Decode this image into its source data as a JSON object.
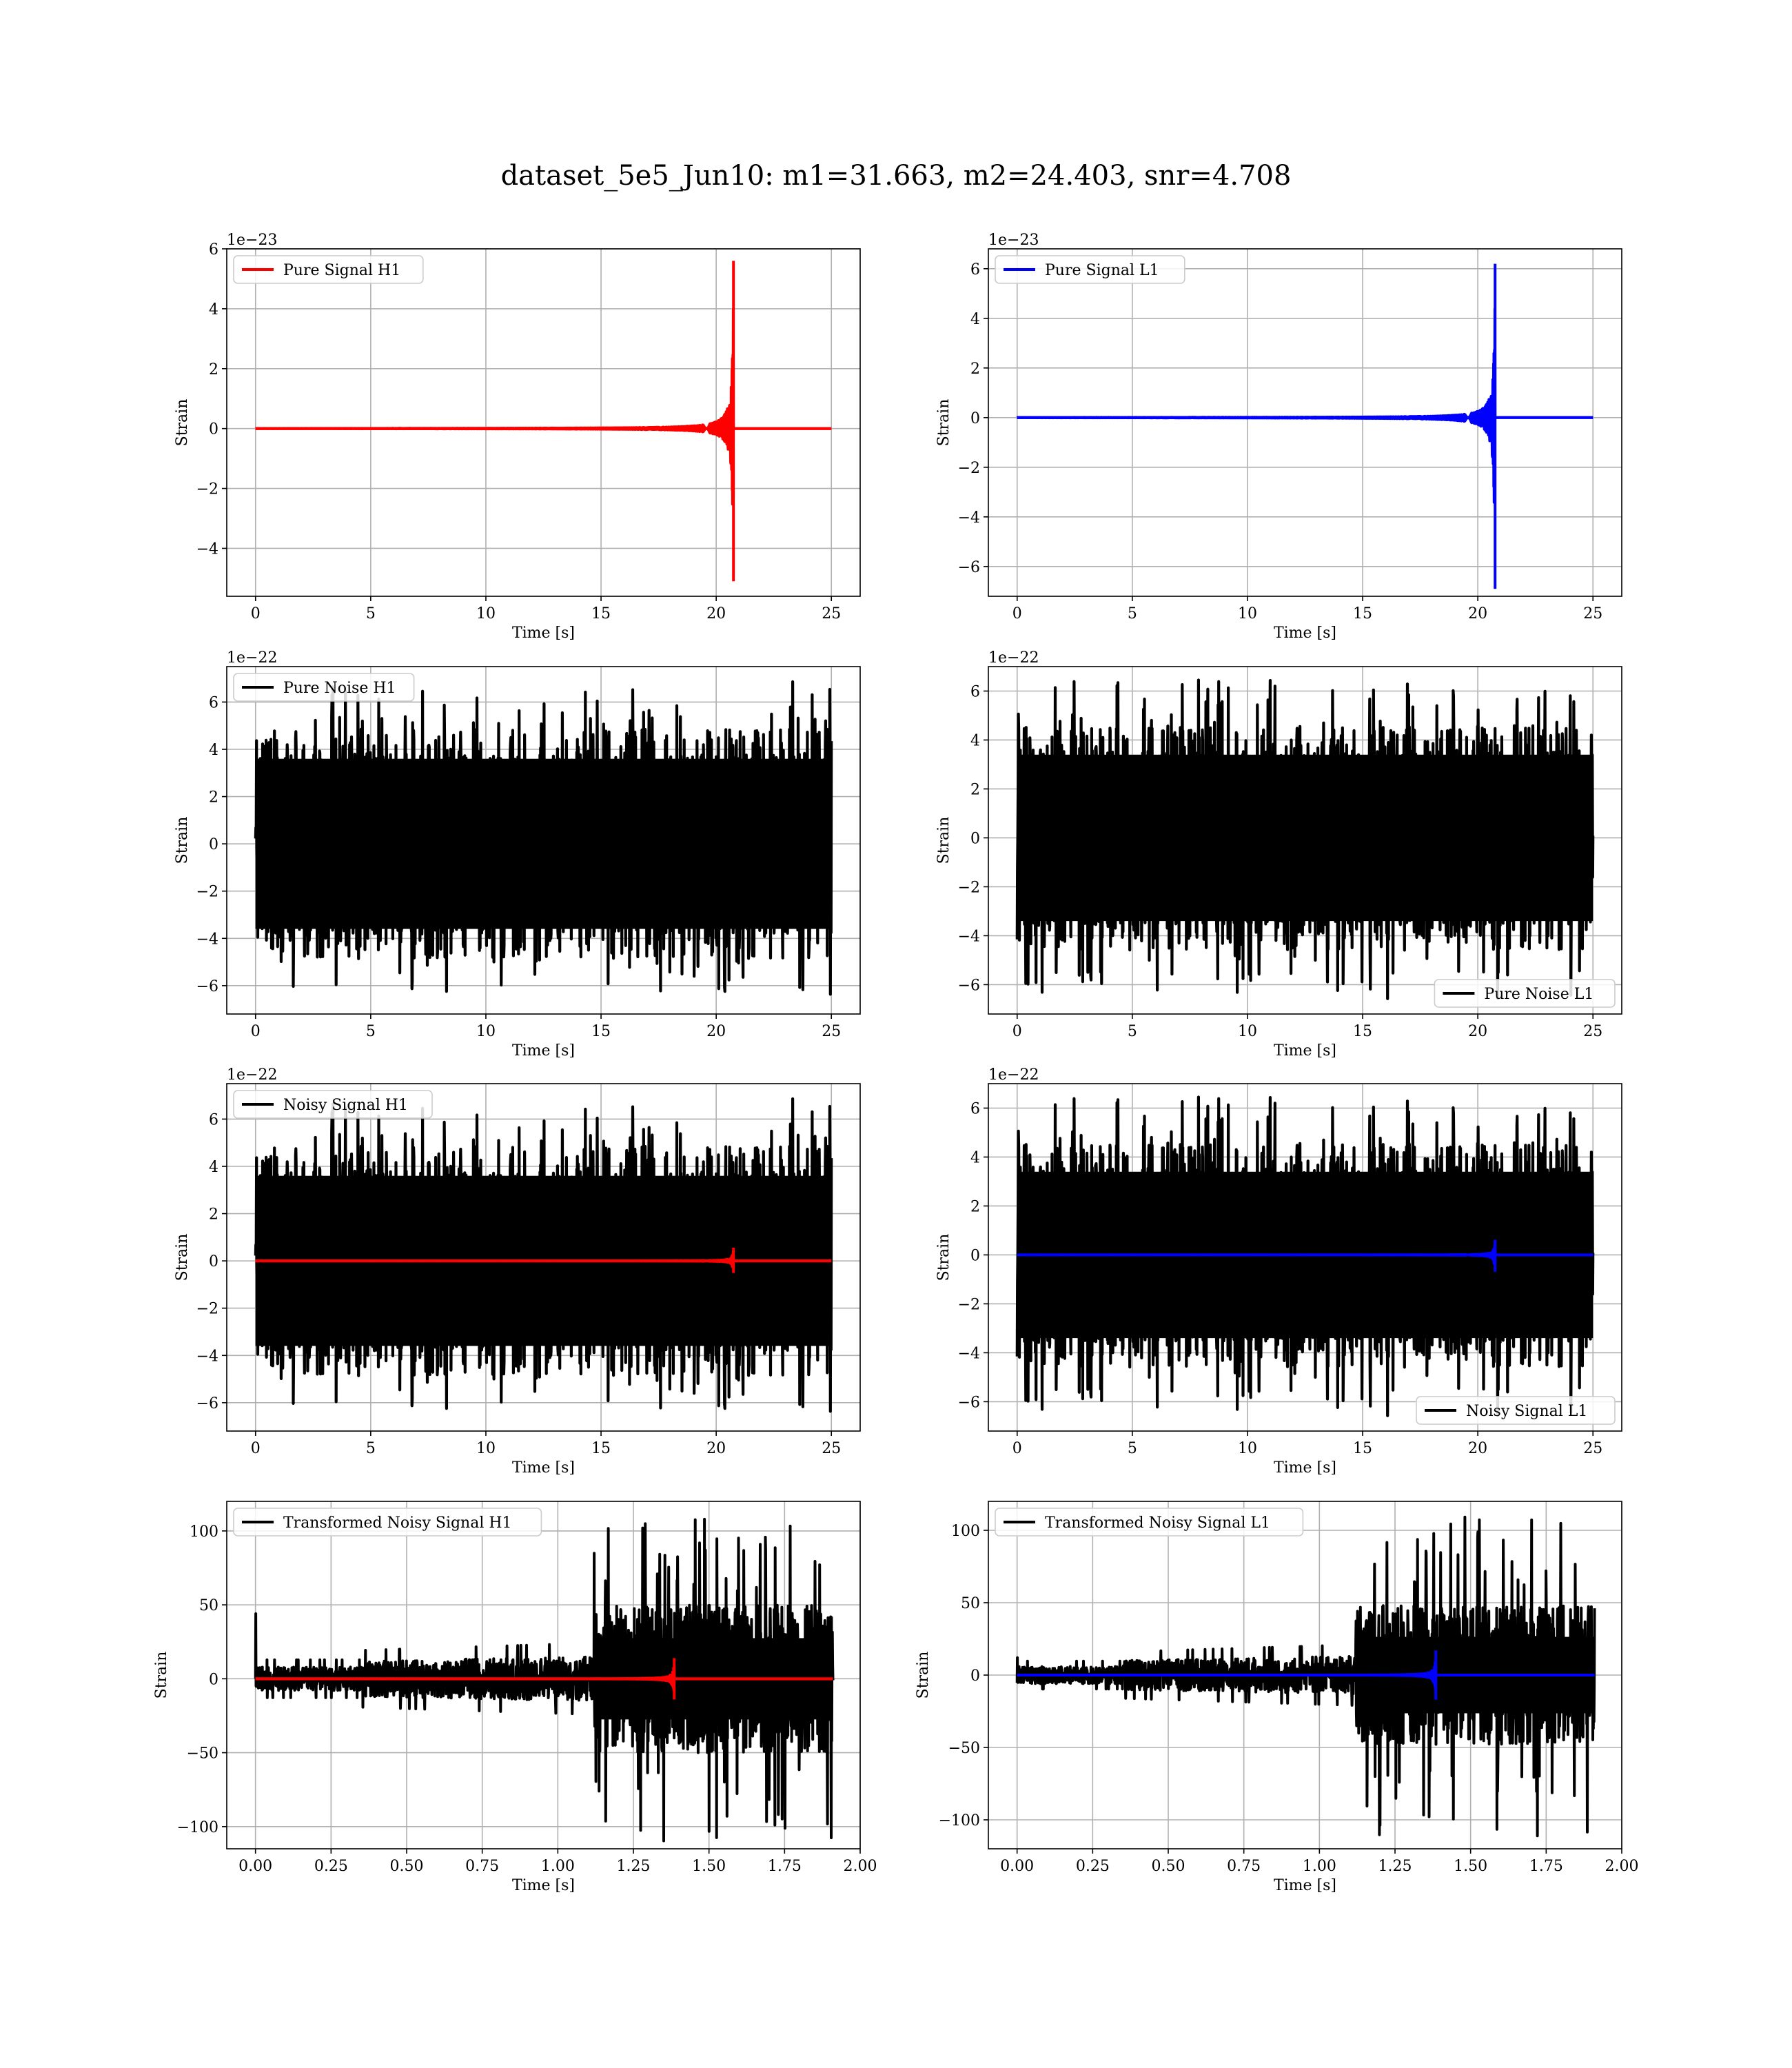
{
  "figure": {
    "suptitle": "dataset_5e5_Jun10: m1=31.663, m2=24.403, snr=4.708"
  },
  "chart_data": [
    {
      "type": "line",
      "title": "",
      "xlabel": "Time [s]",
      "ylabel": "Strain",
      "offset_text": "1e−23",
      "xlim": [
        -1.25,
        26.25
      ],
      "ylim": [
        -5.6,
        6.0
      ],
      "xticks": [
        0,
        5,
        10,
        15,
        20,
        25
      ],
      "xtick_labels": [
        "0",
        "5",
        "10",
        "15",
        "20",
        "25"
      ],
      "yticks": [
        -4,
        -2,
        0,
        2,
        4,
        6
      ],
      "ytick_labels": [
        "−4",
        "−2",
        "0",
        "2",
        "4",
        "6"
      ],
      "grid": true,
      "legend_position": "upper left",
      "series": [
        {
          "name": "Pure Signal H1",
          "kind": "chirp",
          "color": "#ff0000",
          "t_start": 0,
          "t_end": 25,
          "t_merge": 20.75,
          "amp_pos": 5.6,
          "amp_neg": -5.1
        }
      ]
    },
    {
      "type": "line",
      "title": "",
      "xlabel": "Time [s]",
      "ylabel": "Strain",
      "offset_text": "1e−23",
      "xlim": [
        -1.25,
        26.25
      ],
      "ylim": [
        -7.2,
        6.8
      ],
      "xticks": [
        0,
        5,
        10,
        15,
        20,
        25
      ],
      "xtick_labels": [
        "0",
        "5",
        "10",
        "15",
        "20",
        "25"
      ],
      "yticks": [
        -6,
        -4,
        -2,
        0,
        2,
        4,
        6
      ],
      "ytick_labels": [
        "−6",
        "−4",
        "−2",
        "0",
        "2",
        "4",
        "6"
      ],
      "grid": true,
      "legend_position": "upper left",
      "series": [
        {
          "name": "Pure Signal L1",
          "kind": "chirp",
          "color": "#0000ff",
          "t_start": 0,
          "t_end": 25,
          "t_merge": 20.75,
          "amp_pos": 6.2,
          "amp_neg": -6.9
        }
      ]
    },
    {
      "type": "line",
      "title": "",
      "xlabel": "Time [s]",
      "ylabel": "Strain",
      "offset_text": "1e−22",
      "xlim": [
        -1.25,
        26.25
      ],
      "ylim": [
        -7.2,
        7.5
      ],
      "xticks": [
        0,
        5,
        10,
        15,
        20,
        25
      ],
      "xtick_labels": [
        "0",
        "5",
        "10",
        "15",
        "20",
        "25"
      ],
      "yticks": [
        -6,
        -4,
        -2,
        0,
        2,
        4,
        6
      ],
      "ytick_labels": [
        "−6",
        "−4",
        "−2",
        "0",
        "2",
        "4",
        "6"
      ],
      "grid": true,
      "legend_position": "upper left",
      "series": [
        {
          "name": "Pure Noise H1",
          "kind": "noise",
          "color": "#000000",
          "t_start": 0,
          "t_end": 25,
          "max": 6.9,
          "min": -6.5,
          "band": 3.6,
          "seed": 11
        }
      ]
    },
    {
      "type": "line",
      "title": "",
      "xlabel": "Time [s]",
      "ylabel": "Strain",
      "offset_text": "1e−22",
      "xlim": [
        -1.25,
        26.25
      ],
      "ylim": [
        -7.2,
        7.0
      ],
      "xticks": [
        0,
        5,
        10,
        15,
        20,
        25
      ],
      "xtick_labels": [
        "0",
        "5",
        "10",
        "15",
        "20",
        "25"
      ],
      "yticks": [
        -6,
        -4,
        -2,
        0,
        2,
        4,
        6
      ],
      "ytick_labels": [
        "−6",
        "−4",
        "−2",
        "0",
        "2",
        "4",
        "6"
      ],
      "grid": true,
      "legend_position": "lower right",
      "series": [
        {
          "name": "Pure Noise L1",
          "kind": "noise",
          "color": "#000000",
          "t_start": 0,
          "t_end": 25,
          "max": 6.5,
          "min": -6.6,
          "band": 3.4,
          "seed": 23
        }
      ]
    },
    {
      "type": "line",
      "title": "",
      "xlabel": "Time [s]",
      "ylabel": "Strain",
      "offset_text": "1e−22",
      "xlim": [
        -1.25,
        26.25
      ],
      "ylim": [
        -7.2,
        7.5
      ],
      "xticks": [
        0,
        5,
        10,
        15,
        20,
        25
      ],
      "xtick_labels": [
        "0",
        "5",
        "10",
        "15",
        "20",
        "25"
      ],
      "yticks": [
        -6,
        -4,
        -2,
        0,
        2,
        4,
        6
      ],
      "ytick_labels": [
        "−6",
        "−4",
        "−2",
        "0",
        "2",
        "4",
        "6"
      ],
      "grid": true,
      "legend_position": "upper left",
      "series": [
        {
          "name": "Noisy Signal H1",
          "kind": "noise",
          "color": "#000000",
          "t_start": 0,
          "t_end": 25,
          "max": 6.9,
          "min": -6.5,
          "band": 3.6,
          "seed": 11
        },
        {
          "name": "",
          "kind": "chirp",
          "color": "#ff0000",
          "t_start": 0,
          "t_end": 25,
          "t_merge": 20.75,
          "amp_pos": 0.56,
          "amp_neg": -0.51
        }
      ]
    },
    {
      "type": "line",
      "title": "",
      "xlabel": "Time [s]",
      "ylabel": "Strain",
      "offset_text": "1e−22",
      "xlim": [
        -1.25,
        26.25
      ],
      "ylim": [
        -7.2,
        7.0
      ],
      "xticks": [
        0,
        5,
        10,
        15,
        20,
        25
      ],
      "xtick_labels": [
        "0",
        "5",
        "10",
        "15",
        "20",
        "25"
      ],
      "yticks": [
        -6,
        -4,
        -2,
        0,
        2,
        4,
        6
      ],
      "ytick_labels": [
        "−6",
        "−4",
        "−2",
        "0",
        "2",
        "4",
        "6"
      ],
      "grid": true,
      "legend_position": "lower right",
      "series": [
        {
          "name": "Noisy Signal L1",
          "kind": "noise",
          "color": "#000000",
          "t_start": 0,
          "t_end": 25,
          "max": 6.5,
          "min": -6.6,
          "band": 3.4,
          "seed": 23
        },
        {
          "name": "",
          "kind": "chirp",
          "color": "#0000ff",
          "t_start": 0,
          "t_end": 25,
          "t_merge": 20.75,
          "amp_pos": 0.62,
          "amp_neg": -0.69
        }
      ]
    },
    {
      "type": "line",
      "title": "",
      "xlabel": "Time [s]",
      "ylabel": "Strain",
      "offset_text": "",
      "xlim": [
        -0.095,
        2.0
      ],
      "ylim": [
        -115,
        120
      ],
      "xticks": [
        0.0,
        0.25,
        0.5,
        0.75,
        1.0,
        1.25,
        1.5,
        1.75,
        2.0
      ],
      "xtick_labels": [
        "0.00",
        "0.25",
        "0.50",
        "0.75",
        "1.00",
        "1.25",
        "1.50",
        "1.75",
        "2.00"
      ],
      "yticks": [
        -100,
        -50,
        0,
        50,
        100
      ],
      "ytick_labels": [
        "−100",
        "−50",
        "0",
        "50",
        "100"
      ],
      "grid": true,
      "legend_position": "upper left",
      "series": [
        {
          "name": "Transformed Noisy Signal H1",
          "kind": "whitened",
          "color": "#000000",
          "t_start": 0,
          "t_end": 1.91,
          "t_jump": 1.12,
          "band_low": 8,
          "band_mid": 12,
          "band_high": 50,
          "spike_t": 0.0,
          "spike_val": 44,
          "max": 108,
          "min": -110,
          "seed": 37
        },
        {
          "name": "",
          "kind": "chirp",
          "color": "#ff0000",
          "t_start": 0,
          "t_end": 1.91,
          "t_merge": 1.385,
          "amp_pos": 14,
          "amp_neg": -14,
          "cycles": 34
        }
      ]
    },
    {
      "type": "line",
      "title": "",
      "xlabel": "Time [s]",
      "ylabel": "Strain",
      "offset_text": "",
      "xlim": [
        -0.095,
        2.0
      ],
      "ylim": [
        -120,
        120
      ],
      "xticks": [
        0.0,
        0.25,
        0.5,
        0.75,
        1.0,
        1.25,
        1.5,
        1.75,
        2.0
      ],
      "xtick_labels": [
        "0.00",
        "0.25",
        "0.50",
        "0.75",
        "1.00",
        "1.25",
        "1.50",
        "1.75",
        "2.00"
      ],
      "yticks": [
        -100,
        -50,
        0,
        50,
        100
      ],
      "ytick_labels": [
        "−100",
        "−50",
        "0",
        "50",
        "100"
      ],
      "grid": true,
      "legend_position": "upper left",
      "series": [
        {
          "name": "Transformed Noisy Signal L1",
          "kind": "whitened",
          "color": "#000000",
          "t_start": 0,
          "t_end": 1.91,
          "t_jump": 1.12,
          "band_low": 6,
          "band_mid": 10,
          "band_high": 48,
          "spike_t": 0.0,
          "spike_val": 12,
          "max": 112,
          "min": -112,
          "seed": 53
        },
        {
          "name": "",
          "kind": "chirp",
          "color": "#0000ff",
          "t_start": 0,
          "t_end": 1.91,
          "t_merge": 1.385,
          "amp_pos": 17,
          "amp_neg": -17,
          "cycles": 34
        }
      ]
    }
  ]
}
